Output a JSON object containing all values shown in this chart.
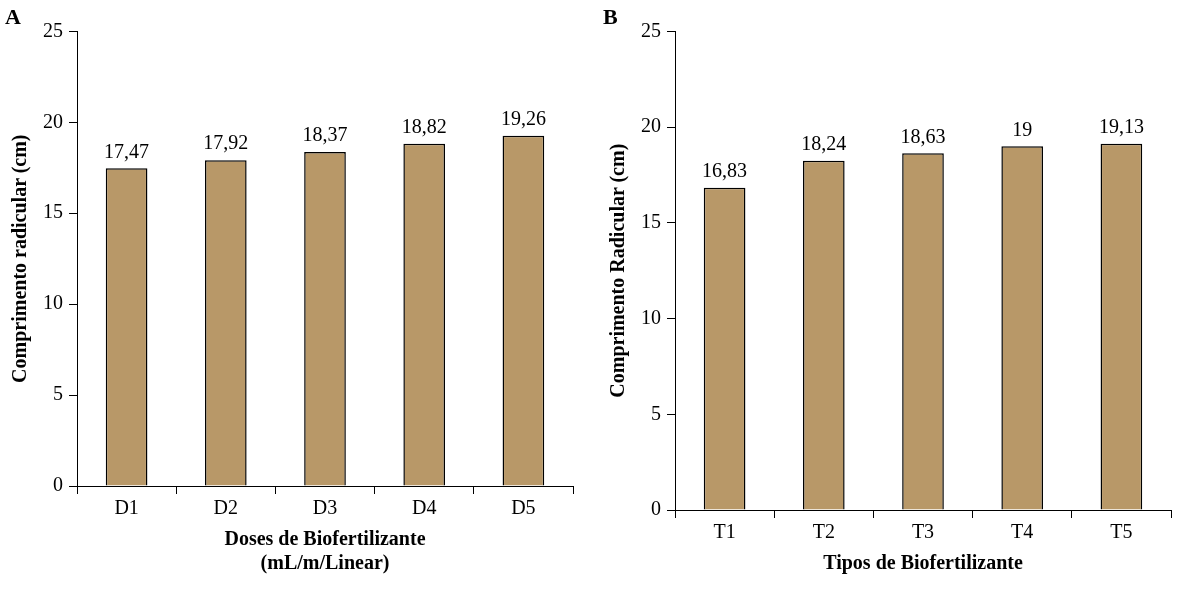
{
  "chart_data": [
    {
      "type": "bar",
      "title": "A",
      "xlabel": "Doses de Biofertilizante\n(mL/m/Linear)",
      "ylabel": "Comprimento radicular (cm)",
      "categories": [
        "D1",
        "D2",
        "D3",
        "D4",
        "D5"
      ],
      "values": [
        17.47,
        17.92,
        18.37,
        18.82,
        19.26
      ],
      "value_labels": [
        "17,47",
        "17,92",
        "18,37",
        "18,82",
        "19,26"
      ],
      "color": "#b89868",
      "ylim": [
        0,
        25
      ],
      "yticks": [
        0,
        5,
        10,
        15,
        20,
        25
      ]
    },
    {
      "type": "bar",
      "title": "B",
      "xlabel": "Tipos de Biofertilizante",
      "ylabel": "Comprimento Radicular (cm)",
      "categories": [
        "T1",
        "T2",
        "T3",
        "T4",
        "T5"
      ],
      "values": [
        16.83,
        18.24,
        18.63,
        19,
        19.13
      ],
      "value_labels": [
        "16,83",
        "18,24",
        "18,63",
        "19",
        "19,13"
      ],
      "color": "#b89868",
      "ylim": [
        0,
        25
      ],
      "yticks": [
        0,
        5,
        10,
        15,
        20,
        25
      ]
    }
  ]
}
